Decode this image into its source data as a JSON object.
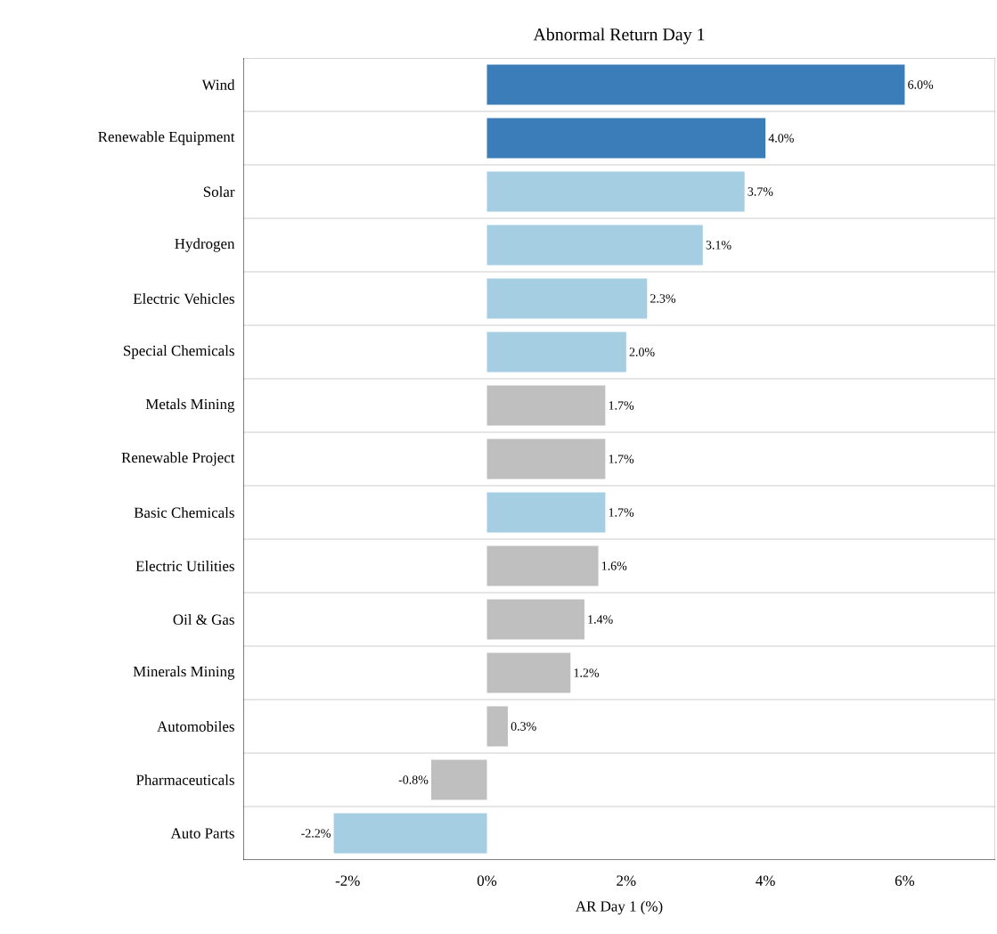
{
  "chart_data": {
    "type": "bar",
    "orientation": "horizontal",
    "title": "Abnormal Return Day 1",
    "xlabel": "AR Day 1 (%)",
    "categories": [
      "Wind",
      "Renewable Equipment",
      "Solar",
      "Hydrogen",
      "Electric Vehicles",
      "Special Chemicals",
      "Metals Mining",
      "Renewable Project",
      "Basic Chemicals",
      "Electric Utilities",
      "Oil & Gas",
      "Minerals Mining",
      "Automobiles",
      "Pharmaceuticals",
      "Auto Parts"
    ],
    "values": [
      6.0,
      4.0,
      3.7,
      3.1,
      2.3,
      2.0,
      1.7,
      1.7,
      1.7,
      1.6,
      1.4,
      1.2,
      0.3,
      -0.8,
      -2.2
    ],
    "value_labels": [
      "6.0%",
      "4.0%",
      "3.7%",
      "3.1%",
      "2.3%",
      "2.0%",
      "1.7%",
      "1.7%",
      "1.7%",
      "1.6%",
      "1.4%",
      "1.2%",
      "0.3%",
      "-0.8%",
      "-2.2%"
    ],
    "colors": [
      "#3a7db8",
      "#3a7db8",
      "#a6cee3",
      "#a6cee3",
      "#a6cee3",
      "#a6cee3",
      "#bfbfbf",
      "#bfbfbf",
      "#a6cee3",
      "#bfbfbf",
      "#bfbfbf",
      "#bfbfbf",
      "#bfbfbf",
      "#bfbfbf",
      "#a6cee3"
    ],
    "xlim": [
      -3.5,
      7.3
    ],
    "xticks": [
      {
        "value": -2,
        "label": "-2%"
      },
      {
        "value": 0,
        "label": "0%"
      },
      {
        "value": 2,
        "label": "2%"
      },
      {
        "value": 4,
        "label": "4%"
      },
      {
        "value": 6,
        "label": "6%"
      }
    ],
    "grid": "y"
  }
}
